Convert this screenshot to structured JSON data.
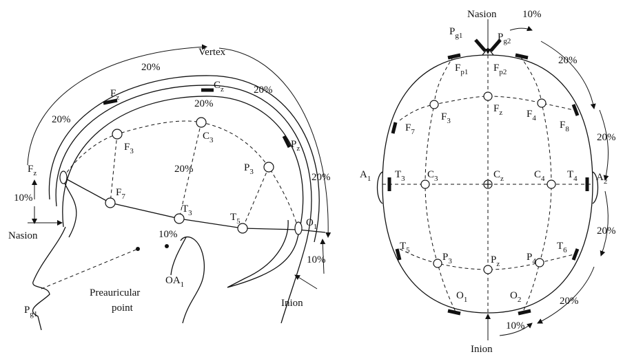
{
  "left": {
    "labels": [
      "Vertex",
      "20%",
      {
        "base": "F",
        "sub": "z"
      },
      {
        "base": "C",
        "sub": "z"
      },
      "20%",
      "20%",
      "20%",
      {
        "base": "F",
        "sub": "z"
      },
      {
        "base": "F",
        "sub": "3"
      },
      {
        "base": "C",
        "sub": "3"
      },
      "20%",
      {
        "base": "P",
        "sub": "z"
      },
      {
        "base": "P",
        "sub": "3"
      },
      "20%",
      {
        "base": "F",
        "sub": "7"
      },
      "10%",
      {
        "base": "T",
        "sub": "3"
      },
      {
        "base": "T",
        "sub": "5"
      },
      {
        "base": "O",
        "sub": "1"
      },
      "Nasion",
      "10%",
      {
        "base": "OA",
        "sub": "1"
      },
      {
        "lines": [
          "Preauricular",
          "point"
        ]
      },
      {
        "base": "P",
        "sub": "g1"
      },
      "Inion",
      "10%"
    ]
  },
  "right": {
    "labels": [
      "Nasion",
      "10%",
      {
        "base": "P",
        "sub": "g1"
      },
      {
        "base": "P",
        "sub": "g2"
      },
      {
        "base": "F",
        "sub": "p1"
      },
      {
        "base": "F",
        "sub": "p2"
      },
      "20%",
      {
        "base": "F",
        "sub": "z"
      },
      {
        "base": "F",
        "sub": "3"
      },
      {
        "base": "F",
        "sub": "4"
      },
      {
        "base": "F",
        "sub": "7"
      },
      {
        "base": "F",
        "sub": "8"
      },
      "20%",
      {
        "base": "A",
        "sub": "1"
      },
      {
        "base": "T",
        "sub": "3"
      },
      {
        "base": "C",
        "sub": "3"
      },
      {
        "base": "C",
        "sub": "z"
      },
      {
        "base": "C",
        "sub": "4"
      },
      {
        "base": "T",
        "sub": "4"
      },
      {
        "base": "A",
        "sub": "2"
      },
      "20%",
      {
        "base": "T",
        "sub": "5"
      },
      {
        "base": "P",
        "sub": "3"
      },
      {
        "base": "P",
        "sub": "z"
      },
      {
        "base": "P",
        "sub": "4"
      },
      {
        "base": "T",
        "sub": "6"
      },
      {
        "base": "O",
        "sub": "1"
      },
      {
        "base": "O",
        "sub": "2"
      },
      "20%",
      "10%",
      "Inion"
    ]
  }
}
